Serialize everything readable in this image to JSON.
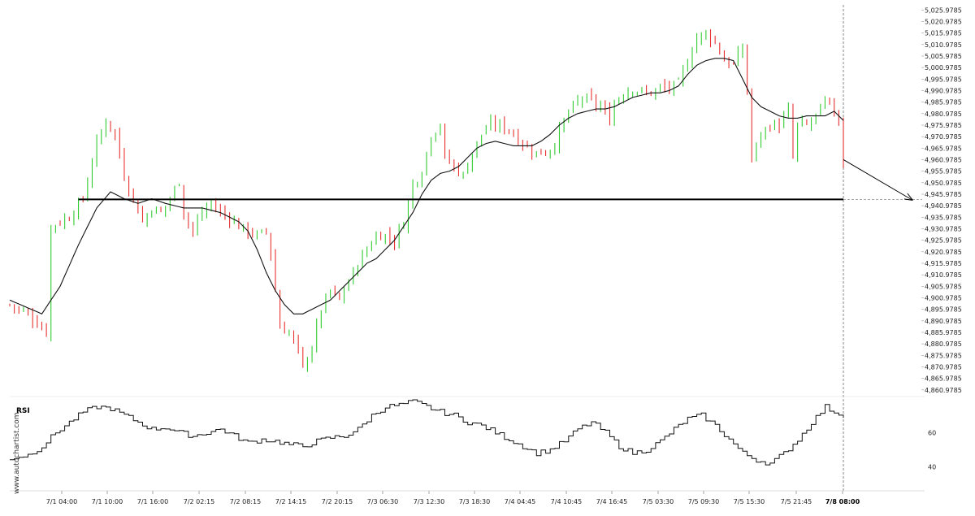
{
  "chart_data": [
    {
      "type": "candlestick",
      "watermark": "www.autochartist.com",
      "x_ticks": [
        "7/1 04:00",
        "7/1 10:00",
        "7/1 16:00",
        "7/2 02:15",
        "7/2 08:15",
        "7/2 14:15",
        "7/2 20:15",
        "7/3 06:30",
        "7/3 12:30",
        "7/3 18:30",
        "7/4 04:45",
        "7/4 10:45",
        "7/4 16:45",
        "7/5 03:30",
        "7/5 09:30",
        "7/5 15:30",
        "7/5 21:45",
        "7/8 08:00"
      ],
      "current_x_label": "7/8 08:00",
      "y_ticks": [
        "5,025.9785",
        "5,020.9785",
        "5,015.9785",
        "5,010.9785",
        "5,005.9785",
        "5,000.9785",
        "4,995.9785",
        "4,990.9785",
        "4,985.9785",
        "4,980.9785",
        "4,975.9785",
        "4,970.9785",
        "4,965.9785",
        "4,960.9785",
        "4,955.9785",
        "4,950.9785",
        "4,945.9785",
        "4,940.9785",
        "4,935.9785",
        "4,930.9785",
        "4,925.9785",
        "4,920.9785",
        "4,915.9785",
        "4,910.9785",
        "4,905.9785",
        "4,900.9785",
        "4,895.9785",
        "4,890.9785",
        "4,885.9785",
        "4,880.9785",
        "4,875.9785",
        "4,870.9785",
        "4,865.9785",
        "4,860.9785"
      ],
      "ylim": [
        4859.5,
        5027.5
      ],
      "close_anchors": [
        [
          0,
          4898
        ],
        [
          4,
          4894
        ],
        [
          8,
          4886
        ],
        [
          9,
          4932
        ],
        [
          13,
          4936
        ],
        [
          16,
          4944
        ],
        [
          19,
          4968
        ],
        [
          21,
          4978
        ],
        [
          23,
          4972
        ],
        [
          25,
          4954
        ],
        [
          27,
          4944
        ],
        [
          29,
          4934
        ],
        [
          31,
          4940
        ],
        [
          33,
          4938
        ],
        [
          35,
          4944
        ],
        [
          37,
          4952
        ],
        [
          38,
          4938
        ],
        [
          40,
          4930
        ],
        [
          42,
          4938
        ],
        [
          44,
          4942
        ],
        [
          46,
          4938
        ],
        [
          48,
          4936
        ],
        [
          50,
          4932
        ],
        [
          52,
          4930
        ],
        [
          54,
          4928
        ],
        [
          56,
          4930
        ],
        [
          57,
          4920
        ],
        [
          59,
          4888
        ],
        [
          61,
          4886
        ],
        [
          63,
          4878
        ],
        [
          64,
          4870
        ],
        [
          66,
          4880
        ],
        [
          68,
          4896
        ],
        [
          70,
          4904
        ],
        [
          72,
          4900
        ],
        [
          74,
          4908
        ],
        [
          76,
          4916
        ],
        [
          78,
          4922
        ],
        [
          80,
          4928
        ],
        [
          82,
          4928
        ],
        [
          84,
          4926
        ],
        [
          86,
          4934
        ],
        [
          88,
          4950
        ],
        [
          90,
          4956
        ],
        [
          92,
          4972
        ],
        [
          94,
          4976
        ],
        [
          95,
          4962
        ],
        [
          97,
          4958
        ],
        [
          99,
          4954
        ],
        [
          101,
          4964
        ],
        [
          103,
          4972
        ],
        [
          105,
          4976
        ],
        [
          107,
          4976
        ],
        [
          109,
          4974
        ],
        [
          111,
          4970
        ],
        [
          113,
          4966
        ],
        [
          115,
          4964
        ],
        [
          117,
          4964
        ],
        [
          119,
          4968
        ],
        [
          121,
          4978
        ],
        [
          123,
          4984
        ],
        [
          125,
          4988
        ],
        [
          127,
          4986
        ],
        [
          129,
          4984
        ],
        [
          131,
          4978
        ],
        [
          132,
          4986
        ],
        [
          134,
          4990
        ],
        [
          136,
          4992
        ],
        [
          138,
          4990
        ],
        [
          140,
          4990
        ],
        [
          142,
          4992
        ],
        [
          144,
          4992
        ],
        [
          146,
          4994
        ],
        [
          148,
          5004
        ],
        [
          150,
          5014
        ],
        [
          152,
          5016
        ],
        [
          154,
          5012
        ],
        [
          156,
          5004
        ],
        [
          158,
          5002
        ],
        [
          160,
          5010
        ],
        [
          161,
          4990
        ],
        [
          162,
          4962
        ],
        [
          164,
          4972
        ],
        [
          166,
          4976
        ],
        [
          168,
          4976
        ],
        [
          170,
          4982
        ],
        [
          171,
          4962
        ],
        [
          172,
          4976
        ],
        [
          174,
          4976
        ],
        [
          176,
          4980
        ],
        [
          178,
          4986
        ],
        [
          180,
          4982
        ],
        [
          181,
          4978
        ],
        [
          182,
          4960
        ]
      ],
      "ma_anchors": [
        [
          0,
          4900
        ],
        [
          7,
          4894
        ],
        [
          11,
          4906
        ],
        [
          15,
          4924
        ],
        [
          19,
          4940
        ],
        [
          22,
          4947
        ],
        [
          25,
          4944
        ],
        [
          28,
          4942
        ],
        [
          31,
          4944
        ],
        [
          34,
          4942
        ],
        [
          38,
          4940
        ],
        [
          42,
          4940
        ],
        [
          46,
          4938
        ],
        [
          50,
          4934
        ],
        [
          52,
          4930
        ],
        [
          54,
          4922
        ],
        [
          56,
          4912
        ],
        [
          58,
          4904
        ],
        [
          60,
          4898
        ],
        [
          62,
          4894
        ],
        [
          64,
          4894
        ],
        [
          66,
          4896
        ],
        [
          68,
          4898
        ],
        [
          70,
          4900
        ],
        [
          72,
          4904
        ],
        [
          74,
          4908
        ],
        [
          76,
          4912
        ],
        [
          78,
          4916
        ],
        [
          80,
          4918
        ],
        [
          82,
          4922
        ],
        [
          84,
          4926
        ],
        [
          86,
          4932
        ],
        [
          88,
          4938
        ],
        [
          90,
          4946
        ],
        [
          92,
          4952
        ],
        [
          94,
          4955
        ],
        [
          96,
          4956
        ],
        [
          98,
          4958
        ],
        [
          100,
          4962
        ],
        [
          102,
          4966
        ],
        [
          104,
          4968
        ],
        [
          106,
          4969
        ],
        [
          108,
          4968
        ],
        [
          110,
          4967
        ],
        [
          112,
          4967
        ],
        [
          114,
          4967
        ],
        [
          116,
          4969
        ],
        [
          118,
          4972
        ],
        [
          120,
          4976
        ],
        [
          122,
          4979
        ],
        [
          124,
          4981
        ],
        [
          126,
          4982
        ],
        [
          128,
          4983
        ],
        [
          130,
          4983
        ],
        [
          132,
          4984
        ],
        [
          134,
          4986
        ],
        [
          136,
          4988
        ],
        [
          138,
          4989
        ],
        [
          140,
          4990
        ],
        [
          142,
          4990
        ],
        [
          144,
          4991
        ],
        [
          146,
          4993
        ],
        [
          148,
          4998
        ],
        [
          150,
          5002
        ],
        [
          152,
          5004
        ],
        [
          154,
          5005
        ],
        [
          156,
          5005
        ],
        [
          158,
          5004
        ],
        [
          160,
          4996
        ],
        [
          162,
          4988
        ],
        [
          164,
          4984
        ],
        [
          166,
          4982
        ],
        [
          168,
          4980
        ],
        [
          170,
          4979
        ],
        [
          172,
          4979
        ],
        [
          174,
          4980
        ],
        [
          176,
          4980
        ],
        [
          178,
          4980
        ],
        [
          180,
          4982
        ],
        [
          182,
          4978
        ]
      ],
      "support_level": 4943.7,
      "support_range_candles": [
        15,
        182
      ],
      "forecast_arrow": {
        "start": [
          182,
          4961
        ],
        "end": [
          197,
          4943.5
        ]
      }
    },
    {
      "type": "line",
      "label": "RSI",
      "y_ticks": [
        60,
        40
      ],
      "ylim": [
        28,
        80
      ],
      "rsi_anchors": [
        [
          0,
          45
        ],
        [
          4,
          47
        ],
        [
          7,
          52
        ],
        [
          10,
          60
        ],
        [
          13,
          66
        ],
        [
          16,
          72
        ],
        [
          19,
          75
        ],
        [
          22,
          74
        ],
        [
          25,
          70
        ],
        [
          28,
          66
        ],
        [
          31,
          62
        ],
        [
          34,
          63
        ],
        [
          37,
          60
        ],
        [
          40,
          58
        ],
        [
          43,
          60
        ],
        [
          46,
          62
        ],
        [
          49,
          58
        ],
        [
          52,
          54
        ],
        [
          55,
          56
        ],
        [
          58,
          55
        ],
        [
          61,
          53
        ],
        [
          64,
          52
        ],
        [
          67,
          55
        ],
        [
          70,
          57
        ],
        [
          73,
          58
        ],
        [
          76,
          62
        ],
        [
          79,
          70
        ],
        [
          82,
          75
        ],
        [
          85,
          76
        ],
        [
          88,
          78
        ],
        [
          91,
          75
        ],
        [
          94,
          72
        ],
        [
          97,
          70
        ],
        [
          100,
          66
        ],
        [
          103,
          64
        ],
        [
          106,
          60
        ],
        [
          109,
          56
        ],
        [
          112,
          52
        ],
        [
          115,
          48
        ],
        [
          118,
          50
        ],
        [
          121,
          55
        ],
        [
          124,
          62
        ],
        [
          127,
          66
        ],
        [
          130,
          60
        ],
        [
          133,
          52
        ],
        [
          136,
          48
        ],
        [
          139,
          50
        ],
        [
          142,
          55
        ],
        [
          145,
          62
        ],
        [
          148,
          68
        ],
        [
          151,
          70
        ],
        [
          154,
          64
        ],
        [
          157,
          56
        ],
        [
          160,
          48
        ],
        [
          163,
          44
        ],
        [
          166,
          42
        ],
        [
          169,
          48
        ],
        [
          172,
          56
        ],
        [
          175,
          66
        ],
        [
          178,
          75
        ],
        [
          180,
          72
        ],
        [
          182,
          70
        ]
      ]
    }
  ]
}
